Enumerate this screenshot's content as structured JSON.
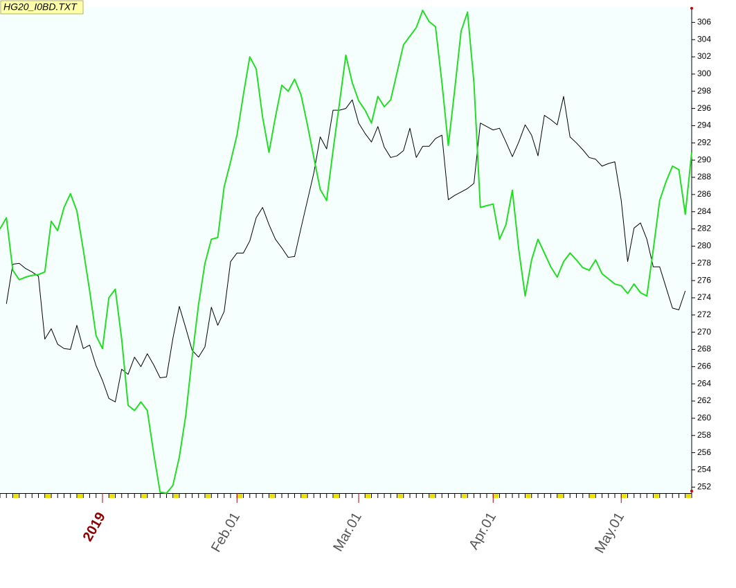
{
  "chart_data": {
    "type": "line",
    "title": "HG20_I0BD.TXT",
    "categories": [
      null,
      null,
      null,
      null,
      null,
      null,
      null,
      null,
      null,
      null,
      null,
      null,
      null,
      null,
      null,
      null,
      "2019",
      null,
      null,
      null,
      null,
      null,
      null,
      null,
      null,
      null,
      null,
      null,
      null,
      null,
      null,
      null,
      null,
      null,
      null,
      null,
      null,
      "Feb.01",
      null,
      null,
      null,
      null,
      null,
      null,
      null,
      null,
      null,
      null,
      null,
      null,
      null,
      null,
      null,
      null,
      null,
      null,
      "Mar.01",
      null,
      null,
      null,
      null,
      null,
      null,
      null,
      null,
      null,
      null,
      null,
      null,
      null,
      null,
      null,
      null,
      null,
      null,
      null,
      null,
      "Apr.01",
      null,
      null,
      null,
      null,
      null,
      null,
      null,
      null,
      null,
      null,
      null,
      null,
      null,
      null,
      null,
      null,
      null,
      null,
      null,
      "May.01",
      null,
      null,
      null,
      null,
      null,
      null,
      null,
      null,
      null,
      null,
      null
    ],
    "series": [
      {
        "color": "#000000",
        "values": [
          null,
          273.3,
          277.9,
          278.0,
          277.4,
          277.0,
          276.5,
          269.2,
          270.4,
          268.6,
          268.1,
          268.0,
          270.8,
          268.1,
          268.5,
          266.1,
          264.4,
          262.3,
          261.9,
          265.7,
          265.1,
          267.1,
          266.0,
          267.5,
          266.2,
          264.7,
          264.8,
          269.3,
          273.0,
          270.5,
          267.9,
          267.1,
          268.3,
          272.9,
          270.8,
          272.4,
          278.2,
          279.2,
          279.2,
          280.6,
          283.3,
          284.5,
          282.5,
          280.8,
          279.8,
          278.7,
          278.8,
          282.1,
          285.3,
          288.5,
          292.7,
          291.3,
          295.8,
          295.8,
          296.0,
          297.0,
          294.3,
          293.1,
          292.1,
          293.9,
          291.5,
          290.3,
          290.5,
          291.1,
          293.7,
          290.3,
          291.6,
          291.6,
          292.5,
          292.9,
          285.4,
          285.9,
          286.3,
          286.7,
          287.3,
          294.3,
          293.9,
          293.5,
          293.7,
          292.1,
          290.4,
          292.1,
          294.1,
          292.9,
          290.5,
          295.2,
          294.7,
          294.1,
          297.4,
          292.7,
          292.0,
          291.2,
          290.3,
          290.1,
          289.3,
          289.6,
          289.8,
          285.3,
          278.2,
          282.1,
          282.7,
          280.8,
          277.6,
          277.6,
          275.2,
          272.8,
          272.6,
          274.8,
          null
        ]
      },
      {
        "color": "#22dd22",
        "values": [
          282.0,
          283.3,
          277.2,
          276.1,
          276.4,
          276.6,
          276.7,
          277.0,
          282.9,
          281.8,
          284.5,
          286.1,
          284.1,
          279.6,
          274.8,
          269.6,
          268.1,
          274.0,
          275.0,
          269.2,
          261.5,
          260.9,
          261.9,
          260.9,
          255.9,
          251.4,
          251.3,
          252.2,
          255.5,
          260.3,
          267.1,
          273.2,
          278.0,
          280.8,
          281.0,
          286.9,
          289.8,
          292.9,
          297.6,
          302.0,
          300.6,
          295.0,
          290.9,
          295.0,
          298.7,
          298.0,
          299.4,
          297.6,
          294.1,
          290.3,
          286.6,
          285.3,
          291.1,
          296.6,
          302.2,
          299.0,
          296.9,
          295.8,
          294.3,
          297.4,
          296.2,
          297.0,
          300.2,
          303.4,
          304.4,
          305.4,
          307.4,
          306.1,
          305.5,
          299.0,
          291.7,
          298.2,
          305.0,
          307.2,
          299.0,
          284.5,
          284.7,
          284.9,
          280.8,
          282.5,
          286.5,
          279.6,
          274.2,
          278.4,
          280.8,
          279.2,
          277.6,
          276.4,
          278.2,
          279.2,
          278.4,
          277.5,
          277.2,
          278.4,
          276.8,
          276.2,
          275.6,
          275.4,
          274.5,
          275.6,
          274.6,
          274.2,
          279.6,
          285.3,
          287.5,
          289.3,
          288.9,
          283.7,
          290.9
        ]
      }
    ],
    "ylim": [
      251.3,
      307.8
    ],
    "yticks": [
      252,
      254,
      256,
      258,
      260,
      262,
      264,
      266,
      268,
      270,
      272,
      274,
      276,
      278,
      280,
      282,
      284,
      286,
      288,
      290,
      292,
      294,
      296,
      298,
      300,
      302,
      304,
      306
    ]
  }
}
